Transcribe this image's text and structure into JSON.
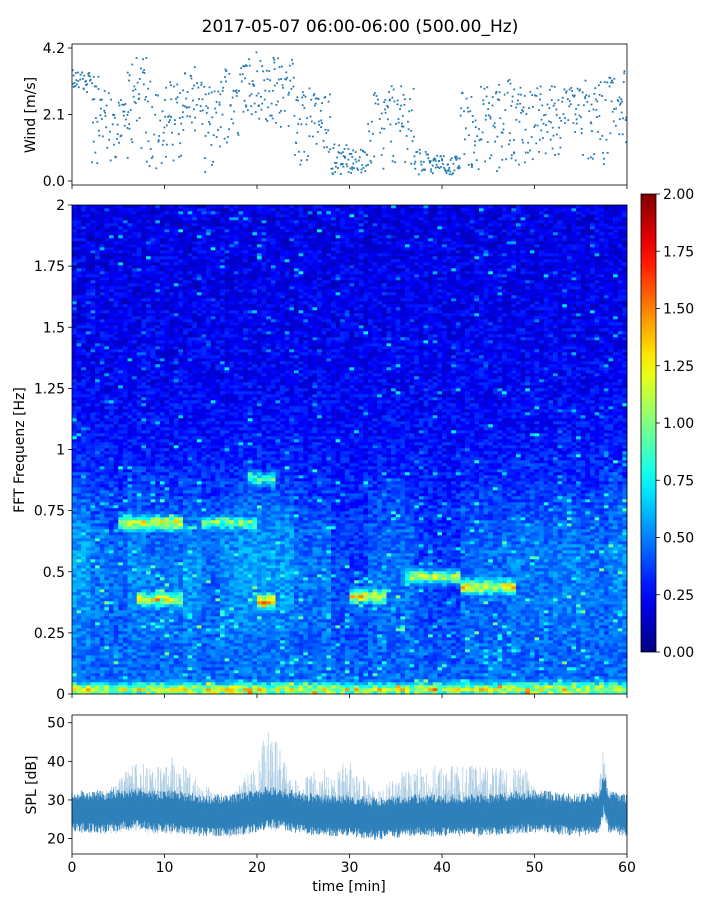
{
  "figure_title": "2017-05-07 06:00-06:00 (500.00_Hz)",
  "chart_data": [
    {
      "type": "scatter",
      "name": "wind",
      "ylabel": "Wind [m/s]",
      "xlim": [
        0,
        60
      ],
      "ylim": [
        0,
        4.2
      ],
      "yticks": [
        "0.0",
        "2.1",
        "4.2"
      ],
      "color": "#1f77b4",
      "sample_step_min": 0.1,
      "segments": [
        {
          "x": [
            0,
            2
          ],
          "low": 2.8,
          "high": 3.5
        },
        {
          "x": [
            2,
            4
          ],
          "low": 0.5,
          "high": 3.3
        },
        {
          "x": [
            4,
            6
          ],
          "low": 0.3,
          "high": 2.6
        },
        {
          "x": [
            6,
            8
          ],
          "low": 1.0,
          "high": 3.9
        },
        {
          "x": [
            8,
            10
          ],
          "low": 0.3,
          "high": 3.5
        },
        {
          "x": [
            10,
            12
          ],
          "low": 0.6,
          "high": 3.2
        },
        {
          "x": [
            12,
            14
          ],
          "low": 1.5,
          "high": 3.6
        },
        {
          "x": [
            14,
            16
          ],
          "low": 0.2,
          "high": 3.0
        },
        {
          "x": [
            16,
            18
          ],
          "low": 1.2,
          "high": 3.7
        },
        {
          "x": [
            18,
            20
          ],
          "low": 2.0,
          "high": 4.1
        },
        {
          "x": [
            20,
            22
          ],
          "low": 1.8,
          "high": 3.9
        },
        {
          "x": [
            22,
            24
          ],
          "low": 1.5,
          "high": 4.0
        },
        {
          "x": [
            24,
            26
          ],
          "low": 0.5,
          "high": 3.0
        },
        {
          "x": [
            26,
            28
          ],
          "low": 0.8,
          "high": 2.8
        },
        {
          "x": [
            28,
            30
          ],
          "low": 0.2,
          "high": 1.2
        },
        {
          "x": [
            30,
            32
          ],
          "low": 0.2,
          "high": 1.0
        },
        {
          "x": [
            32,
            34
          ],
          "low": 0.2,
          "high": 2.8
        },
        {
          "x": [
            34,
            37
          ],
          "low": 0.5,
          "high": 3.0
        },
        {
          "x": [
            37,
            39
          ],
          "low": 0.2,
          "high": 1.0
        },
        {
          "x": [
            39,
            42
          ],
          "low": 0.2,
          "high": 0.8
        },
        {
          "x": [
            42,
            44
          ],
          "low": 0.3,
          "high": 2.9
        },
        {
          "x": [
            44,
            47
          ],
          "low": 0.2,
          "high": 3.1
        },
        {
          "x": [
            47,
            50
          ],
          "low": 0.5,
          "high": 3.2
        },
        {
          "x": [
            50,
            53
          ],
          "low": 0.8,
          "high": 3.0
        },
        {
          "x": [
            53,
            55
          ],
          "low": 1.5,
          "high": 3.0
        },
        {
          "x": [
            55,
            58
          ],
          "low": 0.3,
          "high": 3.2
        },
        {
          "x": [
            58,
            60
          ],
          "low": 1.2,
          "high": 3.5
        }
      ]
    },
    {
      "type": "heatmap",
      "name": "spectrogram",
      "ylabel": "FFT Frequenz [Hz]",
      "xlim": [
        0,
        60
      ],
      "ylim": [
        0,
        2
      ],
      "yticks": [
        "0",
        "0.25",
        "0.5",
        "0.75",
        "1",
        "1.25",
        "1.5",
        "1.75",
        "2"
      ],
      "colorbar": {
        "min": 0,
        "max": 2,
        "ticks": [
          "0.00",
          "0.25",
          "0.50",
          "0.75",
          "1.00",
          "1.25",
          "1.50",
          "1.75",
          "2.00"
        ],
        "colormap": "jet"
      },
      "hotspots": [
        {
          "f": 0.38,
          "t": [
            20,
            22
          ],
          "value": 2.0
        },
        {
          "f": 0.39,
          "t": [
            7,
            12
          ],
          "value": 1.5
        },
        {
          "f": 0.4,
          "t": [
            30,
            34
          ],
          "value": 1.6
        },
        {
          "f": 0.44,
          "t": [
            42,
            48
          ],
          "value": 1.6
        },
        {
          "f": 0.48,
          "t": [
            36,
            42
          ],
          "value": 1.4
        },
        {
          "f": 0.7,
          "t": [
            5,
            12
          ],
          "value": 1.6
        },
        {
          "f": 0.7,
          "t": [
            14,
            20
          ],
          "value": 1.3
        },
        {
          "f": 0.88,
          "t": [
            19,
            22
          ],
          "value": 1.2
        },
        {
          "f": 0.02,
          "t": [
            0,
            60
          ],
          "value": 1.5
        }
      ]
    },
    {
      "type": "area",
      "name": "spl",
      "ylabel": "SPL [dB]",
      "xlabel": "time [min]",
      "xlim": [
        0,
        60
      ],
      "ylim": [
        16,
        52
      ],
      "yticks": [
        20,
        30,
        40,
        50
      ],
      "xticks": [
        0,
        10,
        20,
        30,
        40,
        50,
        60
      ],
      "color": "#1f77b4",
      "profile": [
        {
          "t": 0,
          "low": 22,
          "core": 27,
          "high": 31
        },
        {
          "t": 4,
          "low": 21,
          "core": 27,
          "high": 33
        },
        {
          "t": 7,
          "low": 22,
          "core": 28,
          "high": 40
        },
        {
          "t": 9,
          "low": 21,
          "core": 27,
          "high": 38
        },
        {
          "t": 11,
          "low": 21,
          "core": 27,
          "high": 42
        },
        {
          "t": 14,
          "low": 21,
          "core": 26,
          "high": 34
        },
        {
          "t": 17,
          "low": 20,
          "core": 26,
          "high": 31
        },
        {
          "t": 20,
          "low": 22,
          "core": 27,
          "high": 40
        },
        {
          "t": 21,
          "low": 22,
          "core": 28,
          "high": 50
        },
        {
          "t": 22,
          "low": 22,
          "core": 28,
          "high": 47
        },
        {
          "t": 24,
          "low": 22,
          "core": 27,
          "high": 36
        },
        {
          "t": 27,
          "low": 21,
          "core": 26,
          "high": 38
        },
        {
          "t": 30,
          "low": 21,
          "core": 26,
          "high": 40
        },
        {
          "t": 33,
          "low": 21,
          "core": 25,
          "high": 32
        },
        {
          "t": 36,
          "low": 21,
          "core": 26,
          "high": 38
        },
        {
          "t": 40,
          "low": 21,
          "core": 26,
          "high": 39
        },
        {
          "t": 44,
          "low": 21,
          "core": 26,
          "high": 39
        },
        {
          "t": 49,
          "low": 21,
          "core": 27,
          "high": 38
        },
        {
          "t": 51,
          "low": 22,
          "core": 27,
          "high": 31
        },
        {
          "t": 55,
          "low": 21,
          "core": 26,
          "high": 32
        },
        {
          "t": 57,
          "low": 22,
          "core": 27,
          "high": 34
        },
        {
          "t": 57.5,
          "low": 25,
          "core": 32,
          "high": 46
        },
        {
          "t": 58,
          "low": 22,
          "core": 27,
          "high": 33
        },
        {
          "t": 60,
          "low": 21,
          "core": 26,
          "high": 31
        }
      ]
    }
  ]
}
